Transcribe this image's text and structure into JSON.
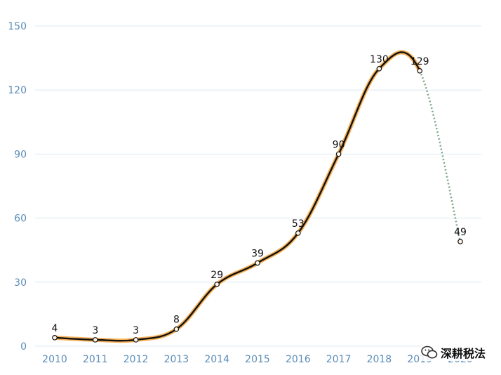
{
  "chart_data": {
    "type": "line",
    "categories": [
      "2010",
      "2011",
      "2012",
      "2013",
      "2014",
      "2015",
      "2016",
      "2017",
      "2018",
      "2019",
      "2020"
    ],
    "values": [
      4,
      3,
      3,
      8,
      29,
      39,
      53,
      90,
      130,
      129,
      49
    ],
    "data_labels": [
      "4",
      "3",
      "3",
      "8",
      "29",
      "39",
      "53",
      "90",
      "130",
      "129",
      "49"
    ],
    "yticks": [
      "0",
      "30",
      "60",
      "90",
      "120",
      "150"
    ],
    "ylim": [
      0,
      150
    ],
    "grid": true,
    "legend": "none",
    "solid_until_index": 9,
    "colors": {
      "line": "#111111",
      "glow": "#f5a33a",
      "dashed": "#7fa88a",
      "marker_fill": "#fff6e8",
      "axis_text": "#5b8db8"
    }
  },
  "watermark": {
    "text": "深耕税法",
    "icon": "wechat-icon"
  }
}
